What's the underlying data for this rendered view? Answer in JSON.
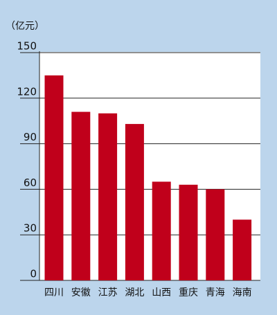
{
  "chart_data": {
    "type": "bar",
    "y_label": "（亿元）",
    "categories": [
      "四川",
      "安徽",
      "江苏",
      "湖北",
      "山西",
      "重庆",
      "青海",
      "海南"
    ],
    "values": [
      135,
      111,
      110,
      103,
      65,
      63,
      60,
      40
    ],
    "color": "#c0001b",
    "ylim": [
      0,
      150
    ],
    "yticks": [
      0,
      30,
      60,
      90,
      120,
      150
    ],
    "grid": true
  }
}
